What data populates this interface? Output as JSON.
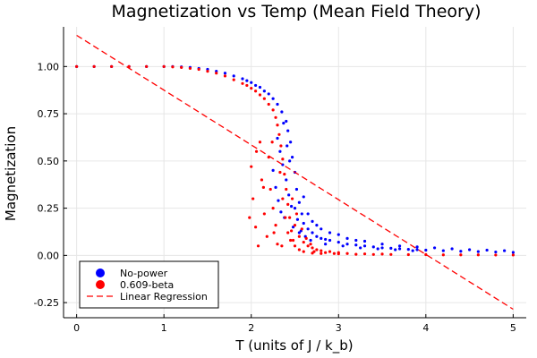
{
  "chart_data": {
    "type": "scatter",
    "title": "Magnetization vs Temp (Mean Field Theory)",
    "xlabel": "T (units of J / k_b)",
    "ylabel": "Magnetization",
    "xlim": [
      -0.15,
      5.15
    ],
    "ylim": [
      -0.33,
      1.21
    ],
    "xticks": [
      0,
      1,
      2,
      3,
      4,
      5
    ],
    "xtick_labels": [
      "0",
      "1",
      "2",
      "3",
      "4",
      "5"
    ],
    "yticks": [
      -0.25,
      0.0,
      0.25,
      0.5,
      0.75,
      1.0
    ],
    "ytick_labels": [
      "-0.25",
      "0.00",
      "0.25",
      "0.50",
      "0.75",
      "1.00"
    ],
    "grid": true,
    "legend_position": "bottom-left",
    "series": [
      {
        "name": "No-power",
        "kind": "scatter",
        "color": "#0000ff",
        "points": [
          [
            0.0,
            1.0
          ],
          [
            0.2,
            1.0
          ],
          [
            0.4,
            1.0
          ],
          [
            0.6,
            1.0
          ],
          [
            0.8,
            1.0
          ],
          [
            1.0,
            1.0
          ],
          [
            1.1,
            1.0
          ],
          [
            1.2,
            0.998
          ],
          [
            1.3,
            0.995
          ],
          [
            1.4,
            0.99
          ],
          [
            1.5,
            0.985
          ],
          [
            1.6,
            0.975
          ],
          [
            1.7,
            0.965
          ],
          [
            1.8,
            0.95
          ],
          [
            1.9,
            0.935
          ],
          [
            1.95,
            0.925
          ],
          [
            2.0,
            0.915
          ],
          [
            2.05,
            0.9
          ],
          [
            2.1,
            0.89
          ],
          [
            2.15,
            0.87
          ],
          [
            2.2,
            0.855
          ],
          [
            2.25,
            0.83
          ],
          [
            2.3,
            0.8
          ],
          [
            2.35,
            0.76
          ],
          [
            2.4,
            0.71
          ],
          [
            2.42,
            0.66
          ],
          [
            2.45,
            0.6
          ],
          [
            2.47,
            0.52
          ],
          [
            2.5,
            0.44
          ],
          [
            2.52,
            0.35
          ],
          [
            2.55,
            0.28
          ],
          [
            2.58,
            0.22
          ],
          [
            2.6,
            0.17
          ],
          [
            2.65,
            0.14
          ],
          [
            2.7,
            0.12
          ],
          [
            2.75,
            0.1
          ],
          [
            2.8,
            0.09
          ],
          [
            2.85,
            0.085
          ],
          [
            2.9,
            0.08
          ],
          [
            3.0,
            0.07
          ],
          [
            3.1,
            0.06
          ],
          [
            3.2,
            0.055
          ],
          [
            3.3,
            0.05
          ],
          [
            3.4,
            0.045
          ],
          [
            3.5,
            0.04
          ],
          [
            3.6,
            0.038
          ],
          [
            3.7,
            0.035
          ],
          [
            3.8,
            0.032
          ],
          [
            3.9,
            0.03
          ],
          [
            4.0,
            0.028
          ],
          [
            4.2,
            0.025
          ],
          [
            4.4,
            0.022
          ],
          [
            4.6,
            0.02
          ],
          [
            4.8,
            0.018
          ],
          [
            5.0,
            0.016
          ],
          [
            2.3,
            0.62
          ],
          [
            2.33,
            0.55
          ],
          [
            2.36,
            0.48
          ],
          [
            2.4,
            0.4
          ],
          [
            2.43,
            0.32
          ],
          [
            2.46,
            0.26
          ],
          [
            2.38,
            0.2
          ],
          [
            2.48,
            0.15
          ],
          [
            2.55,
            0.12
          ],
          [
            2.6,
            0.31
          ],
          [
            2.65,
            0.22
          ],
          [
            2.7,
            0.18
          ],
          [
            2.75,
            0.16
          ],
          [
            2.8,
            0.14
          ],
          [
            2.9,
            0.12
          ],
          [
            3.0,
            0.11
          ],
          [
            3.1,
            0.09
          ],
          [
            3.2,
            0.08
          ],
          [
            3.3,
            0.075
          ],
          [
            3.5,
            0.06
          ],
          [
            3.7,
            0.05
          ],
          [
            3.9,
            0.045
          ],
          [
            4.1,
            0.04
          ],
          [
            4.3,
            0.035
          ],
          [
            4.5,
            0.03
          ],
          [
            4.7,
            0.028
          ],
          [
            4.9,
            0.025
          ],
          [
            2.25,
            0.45
          ],
          [
            2.28,
            0.36
          ],
          [
            2.31,
            0.29
          ],
          [
            2.34,
            0.23
          ],
          [
            2.37,
            0.7
          ],
          [
            2.41,
            0.58
          ],
          [
            2.44,
            0.5
          ],
          [
            2.5,
            0.25
          ],
          [
            2.53,
            0.19
          ],
          [
            2.57,
            0.13
          ],
          [
            2.62,
            0.1
          ],
          [
            2.68,
            0.08
          ],
          [
            2.85,
            0.06
          ],
          [
            3.05,
            0.05
          ],
          [
            3.25,
            0.04
          ],
          [
            3.45,
            0.035
          ],
          [
            3.65,
            0.03
          ],
          [
            3.85,
            0.025
          ]
        ]
      },
      {
        "name": "0.609-beta",
        "kind": "scatter",
        "color": "#ff0000",
        "points": [
          [
            0.0,
            1.0
          ],
          [
            0.2,
            1.0
          ],
          [
            0.4,
            1.0
          ],
          [
            0.6,
            1.0
          ],
          [
            0.8,
            1.0
          ],
          [
            1.0,
            1.0
          ],
          [
            1.1,
            0.998
          ],
          [
            1.2,
            0.995
          ],
          [
            1.3,
            0.99
          ],
          [
            1.4,
            0.985
          ],
          [
            1.5,
            0.975
          ],
          [
            1.6,
            0.965
          ],
          [
            1.7,
            0.95
          ],
          [
            1.8,
            0.93
          ],
          [
            1.9,
            0.91
          ],
          [
            1.95,
            0.9
          ],
          [
            2.0,
            0.885
          ],
          [
            2.05,
            0.87
          ],
          [
            2.1,
            0.85
          ],
          [
            2.15,
            0.83
          ],
          [
            2.2,
            0.8
          ],
          [
            2.25,
            0.77
          ],
          [
            2.28,
            0.73
          ],
          [
            2.3,
            0.69
          ],
          [
            2.32,
            0.64
          ],
          [
            2.34,
            0.58
          ],
          [
            2.36,
            0.51
          ],
          [
            2.38,
            0.43
          ],
          [
            2.4,
            0.35
          ],
          [
            2.42,
            0.27
          ],
          [
            2.44,
            0.2
          ],
          [
            2.46,
            0.13
          ],
          [
            2.48,
            0.08
          ],
          [
            2.5,
            0.05
          ],
          [
            2.55,
            0.03
          ],
          [
            2.6,
            0.02
          ],
          [
            2.7,
            0.012
          ],
          [
            2.8,
            0.01
          ],
          [
            3.0,
            0.008
          ],
          [
            3.2,
            0.006
          ],
          [
            3.4,
            0.005
          ],
          [
            3.6,
            0.005
          ],
          [
            3.8,
            0.004
          ],
          [
            4.0,
            0.004
          ],
          [
            4.2,
            0.003
          ],
          [
            4.4,
            0.003
          ],
          [
            4.6,
            0.003
          ],
          [
            4.8,
            0.002
          ],
          [
            5.0,
            0.002
          ],
          [
            2.0,
            0.47
          ],
          [
            2.02,
            0.3
          ],
          [
            2.05,
            0.15
          ],
          [
            2.08,
            0.05
          ],
          [
            2.1,
            0.6
          ],
          [
            2.12,
            0.4
          ],
          [
            2.15,
            0.22
          ],
          [
            2.18,
            0.1
          ],
          [
            2.2,
            0.52
          ],
          [
            2.22,
            0.35
          ],
          [
            2.25,
            0.25
          ],
          [
            2.28,
            0.16
          ],
          [
            2.3,
            0.06
          ],
          [
            2.33,
            0.44
          ],
          [
            2.36,
            0.3
          ],
          [
            2.39,
            0.2
          ],
          [
            2.42,
            0.12
          ],
          [
            2.45,
            0.08
          ],
          [
            2.5,
            0.16
          ],
          [
            2.55,
            0.1
          ],
          [
            2.6,
            0.07
          ],
          [
            2.65,
            0.05
          ],
          [
            2.7,
            0.04
          ],
          [
            2.75,
            0.03
          ],
          [
            2.8,
            0.025
          ],
          [
            2.9,
            0.02
          ],
          [
            3.0,
            0.015
          ],
          [
            1.98,
            0.2
          ],
          [
            2.06,
            0.55
          ],
          [
            2.14,
            0.36
          ],
          [
            2.24,
            0.6
          ],
          [
            2.26,
            0.12
          ],
          [
            2.35,
            0.05
          ],
          [
            2.47,
            0.3
          ],
          [
            2.52,
            0.22
          ],
          [
            2.58,
            0.14
          ],
          [
            2.63,
            0.09
          ],
          [
            2.68,
            0.06
          ],
          [
            2.72,
            0.02
          ],
          [
            2.85,
            0.015
          ],
          [
            2.95,
            0.01
          ],
          [
            3.1,
            0.01
          ],
          [
            3.3,
            0.008
          ],
          [
            3.5,
            0.007
          ]
        ]
      },
      {
        "name": "Linear Regression",
        "kind": "line",
        "color": "#ff0000",
        "dashed": true,
        "points": [
          [
            0.0,
            1.165
          ],
          [
            5.0,
            -0.285
          ]
        ]
      }
    ]
  }
}
